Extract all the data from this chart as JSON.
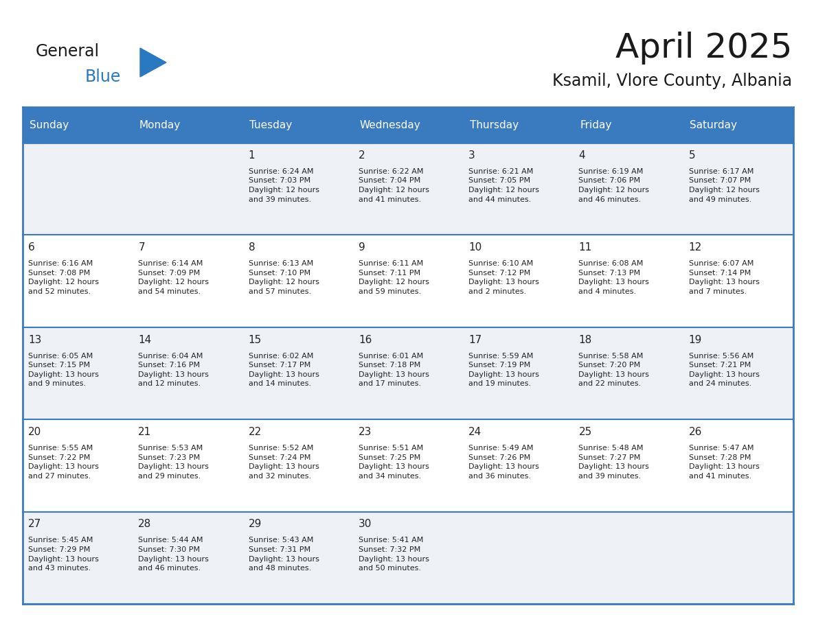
{
  "title": "April 2025",
  "subtitle": "Ksamil, Vlore County, Albania",
  "header_bg": "#3a7bbf",
  "header_text_color": "#ffffff",
  "cell_bg_odd": "#eef2f7",
  "cell_bg_even": "#ffffff",
  "row_divider_color": "#3a7bbf",
  "days_of_week": [
    "Sunday",
    "Monday",
    "Tuesday",
    "Wednesday",
    "Thursday",
    "Friday",
    "Saturday"
  ],
  "title_color": "#1a1a1a",
  "subtitle_color": "#1a1a1a",
  "cell_text_color": "#222222",
  "logo_general_color": "#1a1a1a",
  "logo_blue_color": "#2879bf",
  "weeks": [
    [
      {
        "day": "",
        "info": ""
      },
      {
        "day": "",
        "info": ""
      },
      {
        "day": "1",
        "info": "Sunrise: 6:24 AM\nSunset: 7:03 PM\nDaylight: 12 hours\nand 39 minutes."
      },
      {
        "day": "2",
        "info": "Sunrise: 6:22 AM\nSunset: 7:04 PM\nDaylight: 12 hours\nand 41 minutes."
      },
      {
        "day": "3",
        "info": "Sunrise: 6:21 AM\nSunset: 7:05 PM\nDaylight: 12 hours\nand 44 minutes."
      },
      {
        "day": "4",
        "info": "Sunrise: 6:19 AM\nSunset: 7:06 PM\nDaylight: 12 hours\nand 46 minutes."
      },
      {
        "day": "5",
        "info": "Sunrise: 6:17 AM\nSunset: 7:07 PM\nDaylight: 12 hours\nand 49 minutes."
      }
    ],
    [
      {
        "day": "6",
        "info": "Sunrise: 6:16 AM\nSunset: 7:08 PM\nDaylight: 12 hours\nand 52 minutes."
      },
      {
        "day": "7",
        "info": "Sunrise: 6:14 AM\nSunset: 7:09 PM\nDaylight: 12 hours\nand 54 minutes."
      },
      {
        "day": "8",
        "info": "Sunrise: 6:13 AM\nSunset: 7:10 PM\nDaylight: 12 hours\nand 57 minutes."
      },
      {
        "day": "9",
        "info": "Sunrise: 6:11 AM\nSunset: 7:11 PM\nDaylight: 12 hours\nand 59 minutes."
      },
      {
        "day": "10",
        "info": "Sunrise: 6:10 AM\nSunset: 7:12 PM\nDaylight: 13 hours\nand 2 minutes."
      },
      {
        "day": "11",
        "info": "Sunrise: 6:08 AM\nSunset: 7:13 PM\nDaylight: 13 hours\nand 4 minutes."
      },
      {
        "day": "12",
        "info": "Sunrise: 6:07 AM\nSunset: 7:14 PM\nDaylight: 13 hours\nand 7 minutes."
      }
    ],
    [
      {
        "day": "13",
        "info": "Sunrise: 6:05 AM\nSunset: 7:15 PM\nDaylight: 13 hours\nand 9 minutes."
      },
      {
        "day": "14",
        "info": "Sunrise: 6:04 AM\nSunset: 7:16 PM\nDaylight: 13 hours\nand 12 minutes."
      },
      {
        "day": "15",
        "info": "Sunrise: 6:02 AM\nSunset: 7:17 PM\nDaylight: 13 hours\nand 14 minutes."
      },
      {
        "day": "16",
        "info": "Sunrise: 6:01 AM\nSunset: 7:18 PM\nDaylight: 13 hours\nand 17 minutes."
      },
      {
        "day": "17",
        "info": "Sunrise: 5:59 AM\nSunset: 7:19 PM\nDaylight: 13 hours\nand 19 minutes."
      },
      {
        "day": "18",
        "info": "Sunrise: 5:58 AM\nSunset: 7:20 PM\nDaylight: 13 hours\nand 22 minutes."
      },
      {
        "day": "19",
        "info": "Sunrise: 5:56 AM\nSunset: 7:21 PM\nDaylight: 13 hours\nand 24 minutes."
      }
    ],
    [
      {
        "day": "20",
        "info": "Sunrise: 5:55 AM\nSunset: 7:22 PM\nDaylight: 13 hours\nand 27 minutes."
      },
      {
        "day": "21",
        "info": "Sunrise: 5:53 AM\nSunset: 7:23 PM\nDaylight: 13 hours\nand 29 minutes."
      },
      {
        "day": "22",
        "info": "Sunrise: 5:52 AM\nSunset: 7:24 PM\nDaylight: 13 hours\nand 32 minutes."
      },
      {
        "day": "23",
        "info": "Sunrise: 5:51 AM\nSunset: 7:25 PM\nDaylight: 13 hours\nand 34 minutes."
      },
      {
        "day": "24",
        "info": "Sunrise: 5:49 AM\nSunset: 7:26 PM\nDaylight: 13 hours\nand 36 minutes."
      },
      {
        "day": "25",
        "info": "Sunrise: 5:48 AM\nSunset: 7:27 PM\nDaylight: 13 hours\nand 39 minutes."
      },
      {
        "day": "26",
        "info": "Sunrise: 5:47 AM\nSunset: 7:28 PM\nDaylight: 13 hours\nand 41 minutes."
      }
    ],
    [
      {
        "day": "27",
        "info": "Sunrise: 5:45 AM\nSunset: 7:29 PM\nDaylight: 13 hours\nand 43 minutes."
      },
      {
        "day": "28",
        "info": "Sunrise: 5:44 AM\nSunset: 7:30 PM\nDaylight: 13 hours\nand 46 minutes."
      },
      {
        "day": "29",
        "info": "Sunrise: 5:43 AM\nSunset: 7:31 PM\nDaylight: 13 hours\nand 48 minutes."
      },
      {
        "day": "30",
        "info": "Sunrise: 5:41 AM\nSunset: 7:32 PM\nDaylight: 13 hours\nand 50 minutes."
      },
      {
        "day": "",
        "info": ""
      },
      {
        "day": "",
        "info": ""
      },
      {
        "day": "",
        "info": ""
      }
    ]
  ]
}
